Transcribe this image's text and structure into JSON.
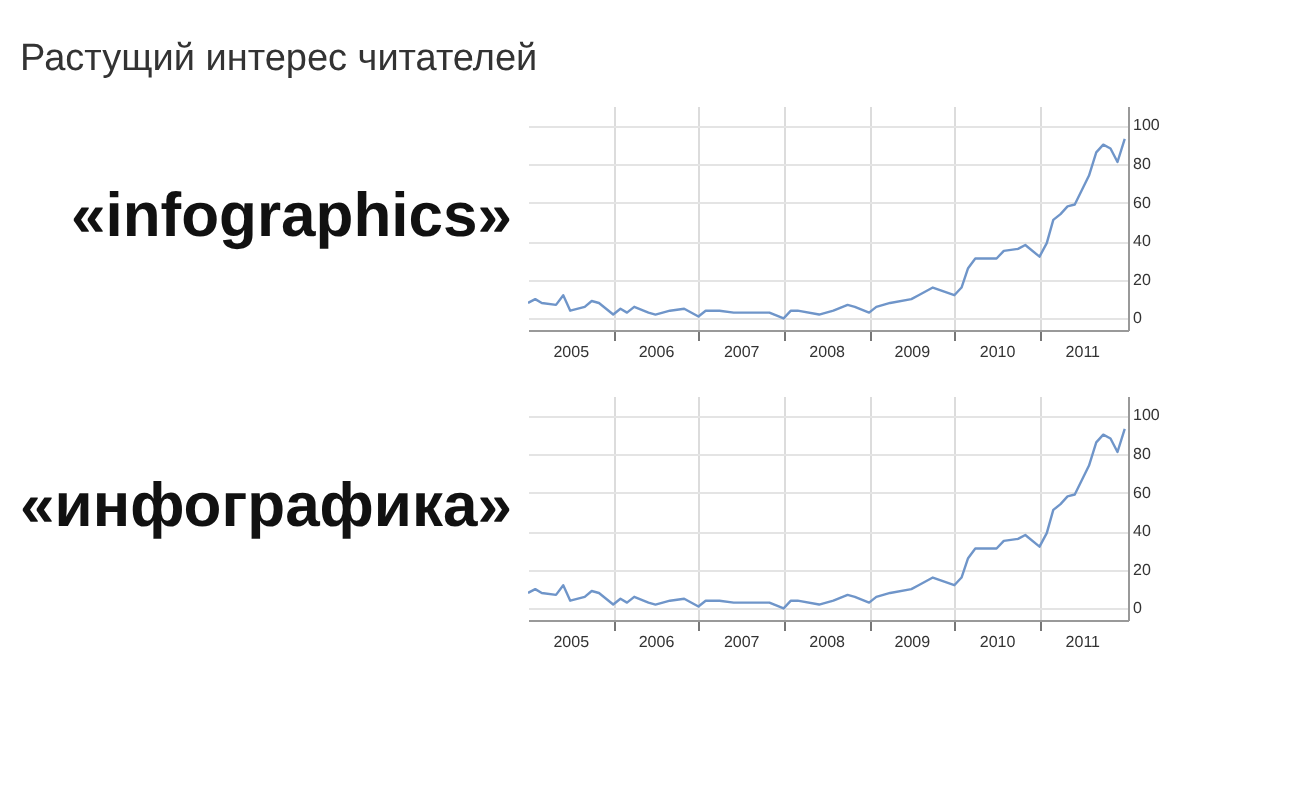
{
  "chart_data": [
    {
      "type": "line",
      "title": "«infographics»",
      "annotations": [
        "Растущий интерес читателей"
      ],
      "x": [
        "2005-01",
        "2005-02",
        "2005-03",
        "2005-05",
        "2005-06",
        "2005-07",
        "2005-09",
        "2005-10",
        "2005-11",
        "2006-01",
        "2006-02",
        "2006-03",
        "2006-04",
        "2006-06",
        "2006-07",
        "2006-09",
        "2006-11",
        "2007-01",
        "2007-02",
        "2007-04",
        "2007-06",
        "2007-08",
        "2007-11",
        "2008-01",
        "2008-02",
        "2008-03",
        "2008-06",
        "2008-08",
        "2008-10",
        "2008-11",
        "2009-01",
        "2009-02",
        "2009-04",
        "2009-07",
        "2009-08",
        "2009-10",
        "2010-01",
        "2010-02",
        "2010-03",
        "2010-04",
        "2010-07",
        "2010-08",
        "2010-10",
        "2010-11",
        "2011-01",
        "2011-02",
        "2011-03",
        "2011-04",
        "2011-05",
        "2011-06",
        "2011-08",
        "2011-09",
        "2011-10",
        "2011-11",
        "2011-12",
        "2012-01"
      ],
      "series": [
        {
          "color": "#6f95c9",
          "values": [
            8,
            10,
            8,
            7,
            12,
            4,
            6,
            9,
            8,
            2,
            5,
            3,
            6,
            3,
            2,
            4,
            5,
            1,
            4,
            4,
            3,
            3,
            3,
            0,
            4,
            4,
            2,
            4,
            7,
            6,
            3,
            6,
            8,
            10,
            12,
            16,
            12,
            16,
            26,
            31,
            31,
            35,
            36,
            38,
            32,
            39,
            51,
            54,
            58,
            59,
            74,
            86,
            90,
            88,
            81,
            93
          ]
        }
      ],
      "xlim": [
        "2005-01-01",
        "2012-01-15"
      ],
      "xticks": [
        {
          "value": "2005-07-01",
          "label": "2005"
        },
        {
          "value": "2006-01-01",
          "label": null
        },
        {
          "value": "2006-07-01",
          "label": "2006"
        },
        {
          "value": "2007-01-01",
          "label": null
        },
        {
          "value": "2007-07-01",
          "label": "2007"
        },
        {
          "value": "2008-01-01",
          "label": null
        },
        {
          "value": "2008-07-01",
          "label": "2008"
        },
        {
          "value": "2009-01-01",
          "label": null
        },
        {
          "value": "2009-07-01",
          "label": "2009"
        },
        {
          "value": "2010-01-01",
          "label": null
        },
        {
          "value": "2010-07-01",
          "label": "2010"
        },
        {
          "value": "2011-01-01",
          "label": null
        },
        {
          "value": "2011-07-01",
          "label": "2011"
        }
      ],
      "ylim": [
        -6,
        110
      ],
      "yticks": [
        0,
        20,
        40,
        60,
        80,
        100
      ],
      "grid": true
    },
    {
      "type": "line",
      "title": "«инфографика»",
      "x": [
        "2005-01",
        "2005-02",
        "2005-03",
        "2005-05",
        "2005-06",
        "2005-07",
        "2005-09",
        "2005-10",
        "2005-11",
        "2006-01",
        "2006-02",
        "2006-03",
        "2006-04",
        "2006-06",
        "2006-07",
        "2006-09",
        "2006-11",
        "2007-01",
        "2007-02",
        "2007-04",
        "2007-06",
        "2007-08",
        "2007-11",
        "2008-01",
        "2008-02",
        "2008-03",
        "2008-06",
        "2008-08",
        "2008-10",
        "2008-11",
        "2009-01",
        "2009-02",
        "2009-04",
        "2009-07",
        "2009-08",
        "2009-10",
        "2010-01",
        "2010-02",
        "2010-03",
        "2010-04",
        "2010-07",
        "2010-08",
        "2010-10",
        "2010-11",
        "2011-01",
        "2011-02",
        "2011-03",
        "2011-04",
        "2011-05",
        "2011-06",
        "2011-08",
        "2011-09",
        "2011-10",
        "2011-11",
        "2011-12",
        "2012-01"
      ],
      "series": [
        {
          "color": "#6f95c9",
          "values": [
            8,
            10,
            8,
            7,
            12,
            4,
            6,
            9,
            8,
            2,
            5,
            3,
            6,
            3,
            2,
            4,
            5,
            1,
            4,
            4,
            3,
            3,
            3,
            0,
            4,
            4,
            2,
            4,
            7,
            6,
            3,
            6,
            8,
            10,
            12,
            16,
            12,
            16,
            26,
            31,
            31,
            35,
            36,
            38,
            32,
            39,
            51,
            54,
            58,
            59,
            74,
            86,
            90,
            88,
            81,
            93
          ]
        }
      ],
      "xlim": [
        "2005-01-01",
        "2012-01-15"
      ],
      "xticks": [
        {
          "value": "2005-07-01",
          "label": "2005"
        },
        {
          "value": "2006-01-01",
          "label": null
        },
        {
          "value": "2006-07-01",
          "label": "2006"
        },
        {
          "value": "2007-01-01",
          "label": null
        },
        {
          "value": "2007-07-01",
          "label": "2007"
        },
        {
          "value": "2008-01-01",
          "label": null
        },
        {
          "value": "2008-07-01",
          "label": "2008"
        },
        {
          "value": "2009-01-01",
          "label": null
        },
        {
          "value": "2009-07-01",
          "label": "2009"
        },
        {
          "value": "2010-01-01",
          "label": null
        },
        {
          "value": "2010-07-01",
          "label": "2010"
        },
        {
          "value": "2011-01-01",
          "label": null
        },
        {
          "value": "2011-07-01",
          "label": "2011"
        }
      ],
      "ylim": [
        -6,
        110
      ],
      "yticks": [
        0,
        20,
        40,
        60,
        80,
        100
      ],
      "grid": true
    }
  ]
}
